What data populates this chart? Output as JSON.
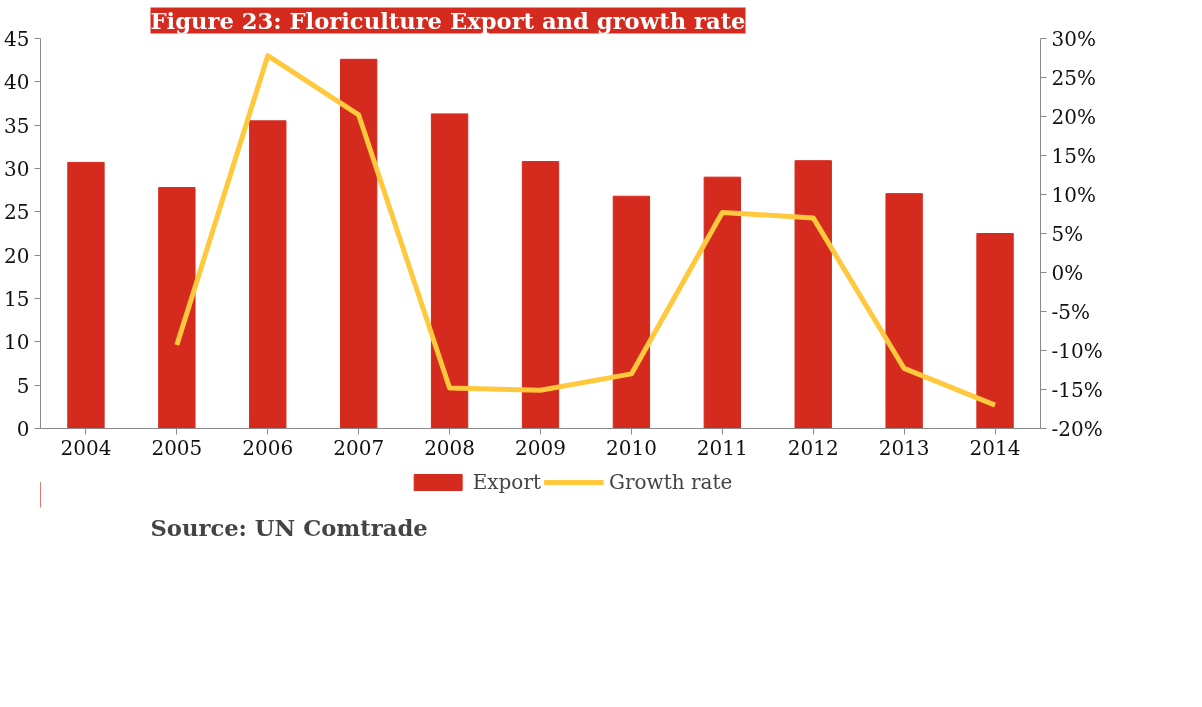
{
  "chart_data": {
    "type": "bar",
    "title": "Figure 23: Floriculture Export and growth rate",
    "categories": [
      "2004",
      "2005",
      "2006",
      "2007",
      "2008",
      "2009",
      "2010",
      "2011",
      "2012",
      "2013",
      "2014"
    ],
    "series": [
      {
        "name": "Export",
        "color": "#d52b1e",
        "values": [
          30.7,
          27.8,
          35.5,
          42.6,
          36.3,
          30.8,
          26.8,
          29.0,
          30.9,
          27.1,
          22.5
        ]
      },
      {
        "name": "Growth rate",
        "type": "line",
        "axis": "y2",
        "color": "#ffc83d",
        "values": [
          null,
          -9.3,
          27.8,
          20.2,
          -14.8,
          -15.1,
          -13.0,
          7.7,
          7.0,
          -12.3,
          -17.0
        ]
      }
    ],
    "ylim": [
      0,
      45
    ],
    "yticks": [
      0,
      5,
      10,
      15,
      20,
      25,
      30,
      35,
      40,
      45
    ],
    "y2lim": [
      -20,
      30
    ],
    "y2ticks": [
      {
        "value": -20,
        "label": "-20%"
      },
      {
        "value": -15,
        "label": "-15%"
      },
      {
        "value": -10,
        "label": "-10%"
      },
      {
        "value": -5,
        "label": "-5%"
      },
      {
        "value": 0,
        "label": "0%"
      },
      {
        "value": 5,
        "label": "5%"
      },
      {
        "value": 10,
        "label": "10%"
      },
      {
        "value": 15,
        "label": "15%"
      },
      {
        "value": 20,
        "label": "20%"
      },
      {
        "value": 25,
        "label": "25%"
      },
      {
        "value": 30,
        "label": "30%"
      }
    ],
    "legend": "bottom",
    "grid": false,
    "annotations": [
      "Source: UN Comtrade"
    ]
  }
}
